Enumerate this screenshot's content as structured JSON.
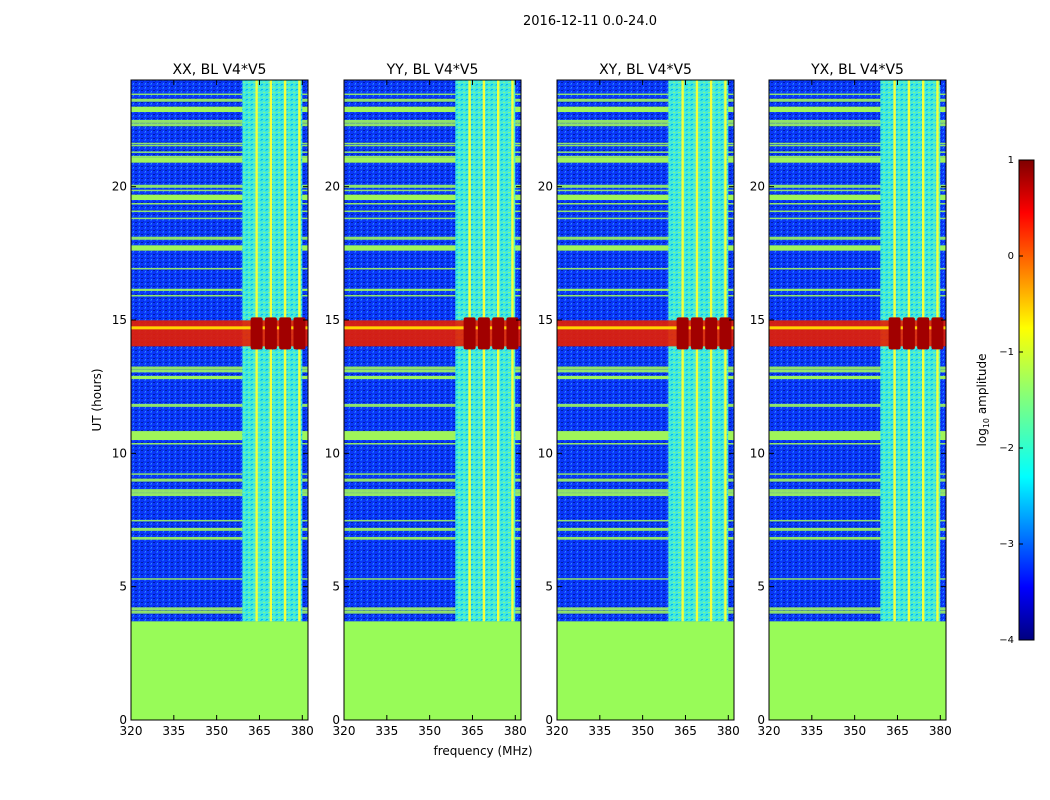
{
  "chart_data": {
    "type": "heatmap",
    "suptitle": "2016-12-11 0.0-24.0",
    "panels": [
      {
        "title": "XX, BL V4*V5"
      },
      {
        "title": "YY, BL V4*V5"
      },
      {
        "title": "XY, BL V4*V5"
      },
      {
        "title": "YX, BL V4*V5"
      }
    ],
    "xlabel": "frequency (MHz)",
    "ylabel": "UT (hours)",
    "xlim": [
      320,
      382
    ],
    "ylim": [
      0,
      24
    ],
    "xticks": [
      "320",
      "335",
      "350",
      "365",
      "380"
    ],
    "yticks": [
      "0",
      "5",
      "10",
      "15",
      "20"
    ],
    "colorbar": {
      "label": "log",
      "label_sub": "10",
      "label_rest": " amplitude",
      "range": [
        -4,
        1
      ],
      "ticks": [
        "1",
        "0",
        "−1",
        "−2",
        "−3",
        "−4"
      ],
      "colormap": "jet"
    },
    "no_data_below_hours": 3.7,
    "rfi_band_mhz": [
      359,
      380
    ],
    "rfi_channels_mhz": [
      364,
      369,
      374,
      379
    ],
    "strong_event_hours": [
      13.9,
      15.1
    ],
    "colors": {
      "no_data_fill": "#98fb58",
      "background_noise": "#0a34ff",
      "horizontal_rfi_line": "#9ff55a",
      "band_fill": "#4af0d4",
      "event_peak": "#a10000",
      "event_spread": "#e81e00"
    }
  }
}
